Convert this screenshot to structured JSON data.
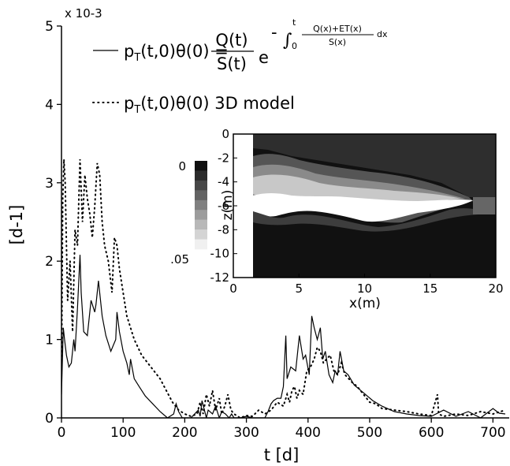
{
  "chart_data": {
    "type": "line",
    "xlabel": "t [d]",
    "ylabel": "[d-1]",
    "y_multiplier": "x 10-3",
    "xlim": [
      0,
      720
    ],
    "ylim": [
      0,
      5
    ],
    "x_ticks": [
      "0",
      "100",
      "200",
      "300",
      "400",
      "500",
      "600",
      "700"
    ],
    "y_ticks": [
      "0",
      "1",
      "2",
      "3",
      "4",
      "5"
    ],
    "legend": {
      "position": "top-center",
      "entries": [
        {
          "style": "solid",
          "formula": "pT(t,0)θ(0) = Q(t) / S(t) · e^(−∫0^t (Q(x)+ET(x))/S(x) dx)"
        },
        {
          "style": "dotted",
          "label": "pT(t,0)θ(0) 3D model"
        }
      ]
    },
    "series": [
      {
        "style": "solid",
        "x": [
          0,
          2,
          3,
          5,
          8,
          12,
          16,
          20,
          22,
          26,
          30,
          32,
          36,
          42,
          48,
          54,
          56,
          60,
          66,
          72,
          80,
          88,
          90,
          94,
          100,
          106,
          110,
          112,
          118,
          126,
          136,
          148,
          160,
          172,
          182,
          186,
          190,
          196,
          205,
          210,
          222,
          225,
          228,
          235,
          238,
          245,
          250,
          256,
          260,
          266,
          272,
          276,
          280,
          290,
          300,
          310,
          320,
          330,
          335,
          340,
          344,
          350,
          356,
          360,
          364,
          366,
          372,
          380,
          386,
          392,
          396,
          402,
          406,
          410,
          415,
          420,
          424,
          428,
          434,
          440,
          444,
          448,
          452,
          458,
          465,
          475,
          490,
          505,
          520,
          540,
          560,
          580,
          600,
          620,
          640,
          660,
          680,
          700,
          710,
          720
        ],
        "y": [
          0.3,
          0.9,
          1.15,
          1.0,
          0.8,
          0.65,
          0.7,
          1.0,
          0.85,
          1.4,
          2.08,
          1.6,
          1.1,
          1.05,
          1.5,
          1.35,
          1.45,
          1.75,
          1.3,
          1.05,
          0.85,
          1.0,
          1.35,
          1.1,
          0.85,
          0.7,
          0.55,
          0.75,
          0.5,
          0.4,
          0.28,
          0.18,
          0.08,
          0.0,
          0.05,
          0.18,
          0.08,
          0.0,
          0.0,
          0.0,
          0.1,
          0.02,
          0.22,
          0.0,
          0.1,
          0.05,
          0.15,
          0.0,
          0.08,
          0.05,
          0.0,
          0.05,
          0.0,
          0.0,
          0.02,
          0.0,
          0.0,
          0.0,
          0.08,
          0.18,
          0.22,
          0.25,
          0.25,
          0.4,
          1.05,
          0.5,
          0.65,
          0.6,
          1.05,
          0.75,
          0.8,
          0.55,
          1.3,
          1.15,
          1.0,
          1.15,
          0.75,
          0.85,
          0.55,
          0.45,
          0.6,
          0.55,
          0.85,
          0.6,
          0.55,
          0.42,
          0.32,
          0.22,
          0.15,
          0.08,
          0.05,
          0.03,
          0.02,
          0.1,
          0.02,
          0.08,
          0.0,
          0.12,
          0.06,
          0.05
        ]
      },
      {
        "style": "dotted",
        "x": [
          0,
          2,
          4,
          6,
          8,
          10,
          14,
          18,
          22,
          26,
          30,
          34,
          38,
          42,
          46,
          50,
          54,
          58,
          62,
          66,
          70,
          76,
          82,
          86,
          90,
          94,
          100,
          106,
          112,
          118,
          124,
          130,
          140,
          150,
          160,
          170,
          180,
          190,
          200,
          210,
          220,
          225,
          230,
          235,
          240,
          245,
          250,
          256,
          260,
          265,
          270,
          275,
          280,
          290,
          300,
          310,
          320,
          330,
          340,
          350,
          360,
          366,
          370,
          374,
          378,
          382,
          386,
          392,
          398,
          404,
          410,
          415,
          420,
          425,
          430,
          436,
          442,
          448,
          454,
          460,
          466,
          472,
          480,
          490,
          500,
          510,
          520,
          540,
          560,
          580,
          600,
          610,
          612,
          620,
          640,
          660,
          680,
          700,
          720
        ],
        "y": [
          0.5,
          2.8,
          3.3,
          3.0,
          2.2,
          1.5,
          2.0,
          1.1,
          2.4,
          2.2,
          3.3,
          2.5,
          3.1,
          2.8,
          2.6,
          2.3,
          2.7,
          3.25,
          3.1,
          2.5,
          2.2,
          2.0,
          1.6,
          2.3,
          2.2,
          1.9,
          1.6,
          1.3,
          1.15,
          1.0,
          0.9,
          0.8,
          0.7,
          0.6,
          0.5,
          0.35,
          0.2,
          0.1,
          0.05,
          0.02,
          0.05,
          0.2,
          0.05,
          0.3,
          0.15,
          0.35,
          0.1,
          0.25,
          0.05,
          0.15,
          0.3,
          0.1,
          0.05,
          0.0,
          0.03,
          0.02,
          0.1,
          0.05,
          0.1,
          0.2,
          0.15,
          0.3,
          0.2,
          0.35,
          0.4,
          0.25,
          0.35,
          0.3,
          0.6,
          0.65,
          0.75,
          0.9,
          0.85,
          0.7,
          0.75,
          0.8,
          0.6,
          0.55,
          0.7,
          0.55,
          0.5,
          0.45,
          0.4,
          0.3,
          0.2,
          0.18,
          0.12,
          0.1,
          0.08,
          0.05,
          0.03,
          0.3,
          0.05,
          0.02,
          0.05,
          0.03,
          0.08,
          0.05,
          0.1
        ]
      }
    ],
    "inset": {
      "type": "heatmap",
      "xlabel": "x(m)",
      "ylabel": "z(m)",
      "xlim": [
        0,
        20
      ],
      "ylim": [
        -12,
        0
      ],
      "x_ticks": [
        "0",
        "5",
        "10",
        "15",
        "20"
      ],
      "y_ticks": [
        "0",
        "-2",
        "-4",
        "-6",
        "-8",
        "-10",
        "-12"
      ],
      "colorbar": {
        "top_label": "0",
        "bottom_label": ".05",
        "levels": 9
      }
    }
  }
}
